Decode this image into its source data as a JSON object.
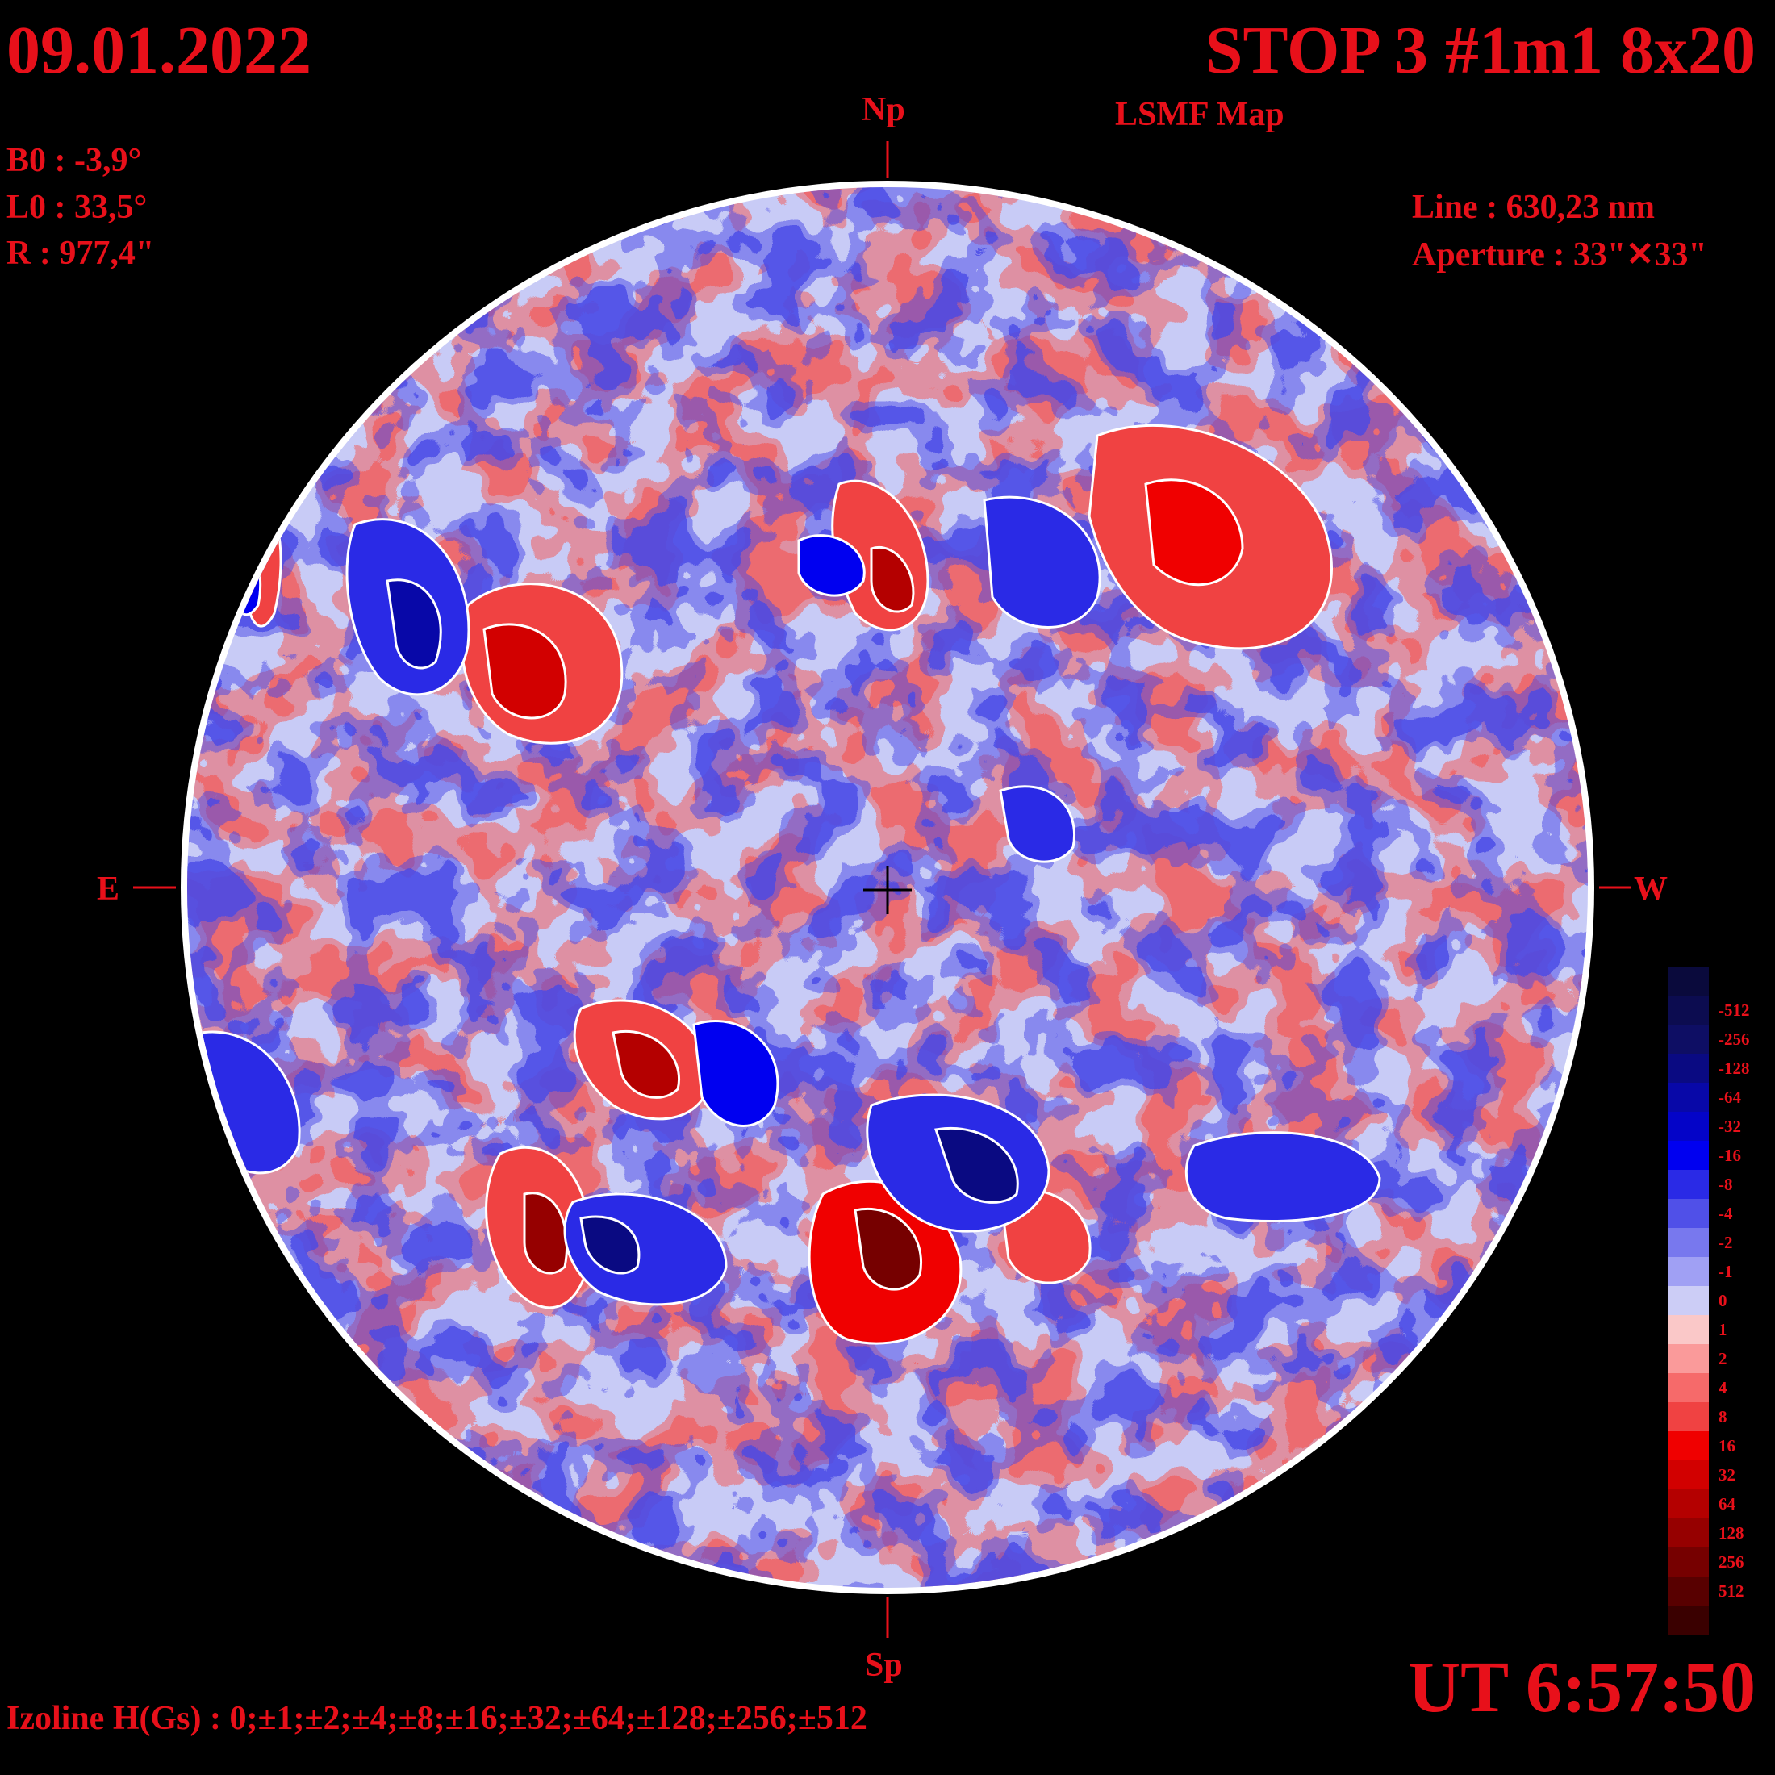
{
  "header": {
    "date": "09.01.2022",
    "title": "STOP 3 #1m1 8x20",
    "subtitle": "LSMF  Map"
  },
  "params": {
    "b0": "B0 : -3,9°",
    "l0": "L0 : 33,5°",
    "r": "R  : 977,4\""
  },
  "instrument": {
    "line": "Line :  630,23 nm",
    "aperture": "Aperture : 33\"✕33\""
  },
  "directions": {
    "north": "Np",
    "south": "Sp",
    "east": "E",
    "west": "W"
  },
  "time": "UT 6:57:50",
  "izoline": "Izoline H(Gs) : 0;±1;±2;±4;±8;±16;±32;±64;±128;±256;±512",
  "legend": {
    "levels": [
      {
        "label": "",
        "color": "#0a0a3c"
      },
      {
        "label": "-512",
        "color": "#0c0c50"
      },
      {
        "label": "-256",
        "color": "#0e0e64"
      },
      {
        "label": "-128",
        "color": "#0a0a82"
      },
      {
        "label": "-64",
        "color": "#0808a8"
      },
      {
        "label": "-32",
        "color": "#0404c8"
      },
      {
        "label": "-16",
        "color": "#0000f0"
      },
      {
        "label": "-8",
        "color": "#2a2ae6"
      },
      {
        "label": "-4",
        "color": "#5050e8"
      },
      {
        "label": "-2",
        "color": "#7878ee"
      },
      {
        "label": "-1",
        "color": "#a0a0f4"
      },
      {
        "label": "0",
        "color": "#cccdf6"
      },
      {
        "label": "1",
        "color": "#fac8c8"
      },
      {
        "label": "2",
        "color": "#fa9a9a"
      },
      {
        "label": "4",
        "color": "#f66a6a"
      },
      {
        "label": "8",
        "color": "#f04242"
      },
      {
        "label": "16",
        "color": "#f00000"
      },
      {
        "label": "32",
        "color": "#d20000"
      },
      {
        "label": "64",
        "color": "#b40000"
      },
      {
        "label": "128",
        "color": "#960000"
      },
      {
        "label": "256",
        "color": "#760000"
      },
      {
        "label": "512",
        "color": "#580000"
      },
      {
        "label": "",
        "color": "#3a0000"
      }
    ]
  }
}
